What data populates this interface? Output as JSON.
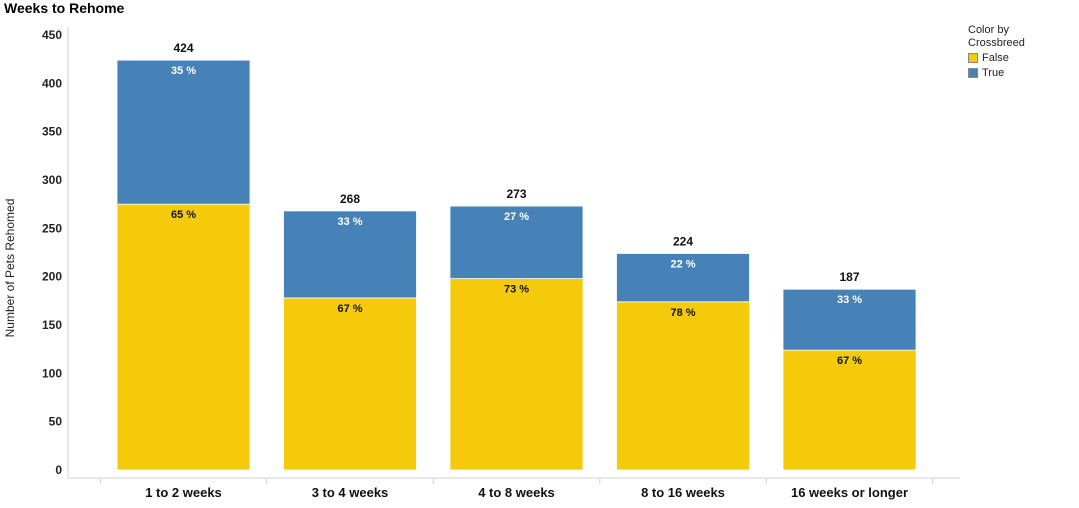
{
  "chart_data": {
    "type": "bar",
    "stacked": true,
    "title": "Weeks to Rehome",
    "ylabel": "Number of Pets Rehomed",
    "xlabel": "",
    "ylim": [
      0,
      450
    ],
    "yticks": [
      0,
      50,
      100,
      150,
      200,
      250,
      300,
      350,
      400,
      450
    ],
    "categories": [
      "1 to 2 weeks",
      "3 to 4 weeks",
      "4 to 8 weeks",
      "8 to 16 weeks",
      "16 weeks or longer"
    ],
    "totals": [
      424,
      268,
      273,
      224,
      187
    ],
    "legend": {
      "title": "Color by Crossbreed",
      "position": "top-right"
    },
    "series": [
      {
        "name": "False",
        "color": "#f4ca0a",
        "values": [
          275,
          178,
          198,
          174,
          124
        ],
        "labels": [
          "65 %",
          "67 %",
          "73 %",
          "78 %",
          "67 %"
        ],
        "label_color": "#111111"
      },
      {
        "name": "True",
        "color": "#4681b8",
        "values": [
          149,
          90,
          75,
          50,
          63
        ],
        "labels": [
          "35 %",
          "33 %",
          "27 %",
          "22 %",
          "33 %"
        ],
        "label_color": "#ffffff"
      }
    ]
  }
}
